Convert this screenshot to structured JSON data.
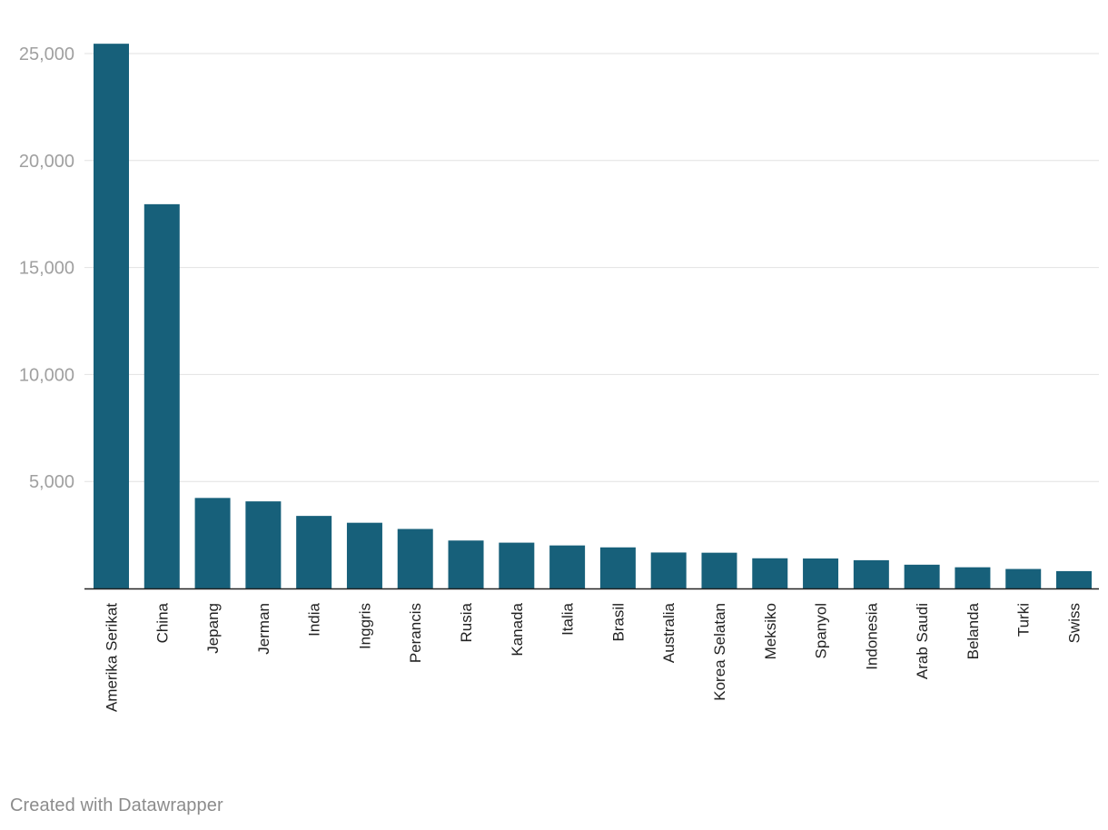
{
  "chart_data": {
    "type": "bar",
    "categories": [
      "Amerika Serikat",
      "China",
      "Jepang",
      "Jerman",
      "India",
      "Inggris",
      "Perancis",
      "Rusia",
      "Kanada",
      "Italia",
      "Brasil",
      "Australia",
      "Korea Selatan",
      "Meksiko",
      "Spanyol",
      "Indonesia",
      "Arab Saudi",
      "Belanda",
      "Turki",
      "Swiss"
    ],
    "values": [
      25460,
      17960,
      4230,
      4070,
      3390,
      3070,
      2780,
      2240,
      2140,
      2010,
      1920,
      1680,
      1670,
      1410,
      1400,
      1320,
      1110,
      990,
      910,
      810
    ],
    "ylim": [
      0,
      25460
    ],
    "yticks": [
      5000,
      10000,
      15000,
      20000,
      25000
    ],
    "ytick_labels": [
      "5,000",
      "10,000",
      "15,000",
      "20,000",
      "25,000"
    ],
    "grid": true,
    "bar_color": "#17607a",
    "gridline_color": "#e2e2e2",
    "tick_label_color": "#a0a0a0",
    "category_label_color": "#222222"
  },
  "footer": {
    "credit": "Created with Datawrapper"
  }
}
